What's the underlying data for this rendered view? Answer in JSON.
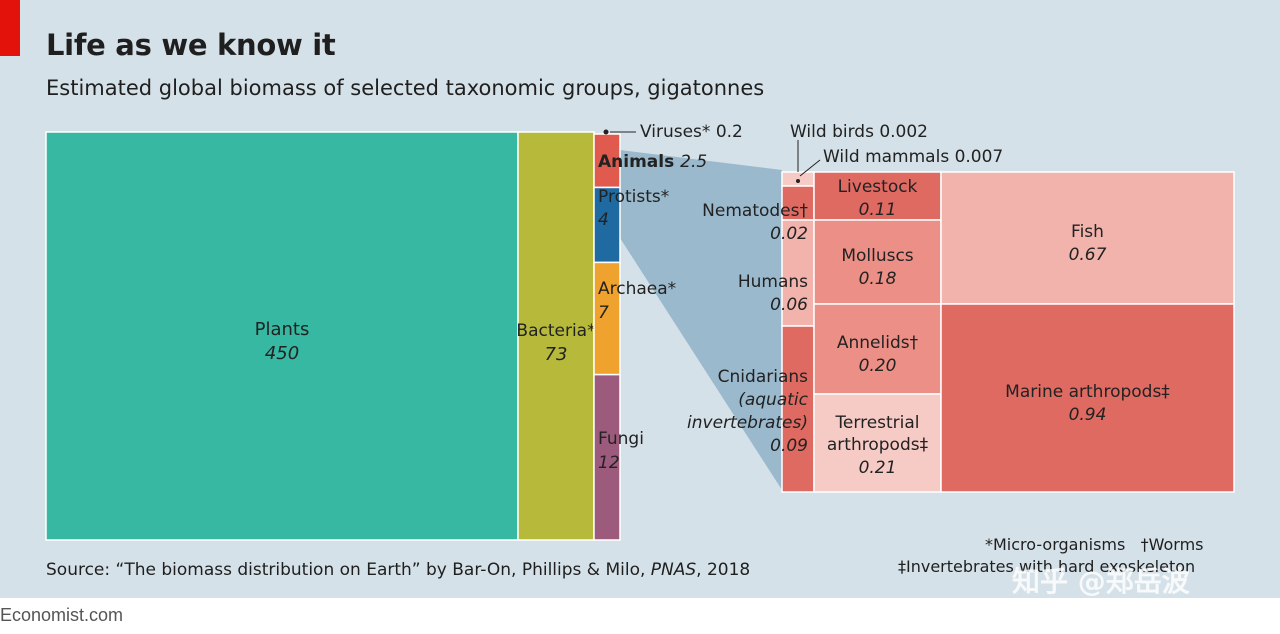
{
  "header": {
    "title": "Life as we know it",
    "subtitle": "Estimated global biomass of selected taxonomic groups, gigatonnes"
  },
  "chart_data": {
    "type": "treemap",
    "title": "Life as we know it",
    "subtitle": "Estimated global biomass of selected taxonomic groups, gigatonnes",
    "unit": "gigatonnes",
    "groups": [
      {
        "name": "Plants",
        "label": "Plants",
        "value": 450,
        "value_label": "450"
      },
      {
        "name": "Bacteria",
        "label": "Bacteria*",
        "value": 73,
        "value_label": "73"
      },
      {
        "name": "Viruses",
        "label": "Viruses* 0.2",
        "value": 0.2,
        "value_label": "0.2"
      },
      {
        "name": "Animals",
        "label": "Animals",
        "value": 2.5,
        "value_label": "2.5"
      },
      {
        "name": "Protists",
        "label": "Protists*",
        "value": 4,
        "value_label": "4"
      },
      {
        "name": "Archaea",
        "label": "Archaea*",
        "value": 7,
        "value_label": "7"
      },
      {
        "name": "Fungi",
        "label": "Fungi",
        "value": 12,
        "value_label": "12"
      }
    ],
    "animals": [
      {
        "name": "Wild birds",
        "label": "Wild birds 0.002",
        "value": 0.002
      },
      {
        "name": "Wild mammals",
        "label": "Wild mammals 0.007",
        "value": 0.007
      },
      {
        "name": "Nematodes",
        "label": "Nematodes†",
        "value": 0.02,
        "value_label": "0.02"
      },
      {
        "name": "Humans",
        "label": "Humans",
        "value": 0.06,
        "value_label": "0.06"
      },
      {
        "name": "Cnidarians",
        "label_lines": [
          "Cnidarians",
          "(aquatic",
          "invertebrates)"
        ],
        "value": 0.09,
        "value_label": "0.09"
      },
      {
        "name": "Livestock",
        "label": "Livestock",
        "value": 0.11,
        "value_label": "0.11"
      },
      {
        "name": "Molluscs",
        "label": "Molluscs",
        "value": 0.18,
        "value_label": "0.18"
      },
      {
        "name": "Annelids",
        "label": "Annelids†",
        "value": 0.2,
        "value_label": "0.20"
      },
      {
        "name": "Terrestrial arthropods",
        "label_lines": [
          "Terrestrial",
          "arthropods‡"
        ],
        "value": 0.21,
        "value_label": "0.21"
      },
      {
        "name": "Fish",
        "label": "Fish",
        "value": 0.67,
        "value_label": "0.67"
      },
      {
        "name": "Marine arthropods",
        "label": "Marine arthropods‡",
        "value": 0.94,
        "value_label": "0.94"
      }
    ],
    "colors": {
      "plants": "#36b8a2",
      "bacteria": "#b7b93b",
      "animals": "#e05a4e",
      "protists": "#1e6aa1",
      "archaea": "#f0a22e",
      "fungi": "#9c5b7d",
      "connector": "#8fb2c8",
      "dark_red": "#de6a62",
      "mid_red": "#ec8f86",
      "light_red": "#f1b3ac",
      "lightest_red": "#f6cbc6"
    }
  },
  "footnotes": {
    "micro": "*Micro-organisms",
    "worms": "†Worms",
    "invertebrates": "‡Invertebrates with hard exoskeleton"
  },
  "source": {
    "prefix": "Source: “The biomass distribution on Earth” by Bar-On, Phillips & Milo,",
    "journal": "PNAS",
    "year": ", 2018"
  },
  "brand": "Economist.com",
  "watermark": "知乎 @郑岳波"
}
